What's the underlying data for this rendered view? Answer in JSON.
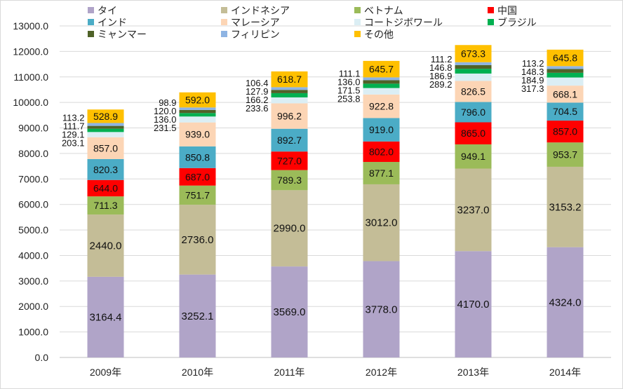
{
  "chart_data": {
    "type": "bar",
    "stacked": true,
    "categories": [
      "2009年",
      "2010年",
      "2011年",
      "2012年",
      "2013年",
      "2014年"
    ],
    "ylim": [
      0,
      13000
    ],
    "yticks": [
      "0.0",
      "1000.0",
      "2000.0",
      "3000.0",
      "4000.0",
      "5000.0",
      "6000.0",
      "7000.0",
      "8000.0",
      "9000.0",
      "10000.0",
      "11000.0",
      "12000.0",
      "13000.0"
    ],
    "grid": true,
    "legend_position": "top",
    "series": [
      {
        "name": "タイ",
        "color": "#b0a4c8",
        "values": [
          3164.4,
          3252.1,
          3569.0,
          3778.0,
          4170.0,
          4324.0
        ],
        "labels": [
          "3164.4",
          "3252.1",
          "3569.0",
          "3778.0",
          "4170.0",
          "4324.0"
        ]
      },
      {
        "name": "インドネシア",
        "color": "#c4bd97",
        "values": [
          2440.0,
          2736.0,
          2990.0,
          3012.0,
          3237.0,
          3153.2
        ],
        "labels": [
          "2440.0",
          "2736.0",
          "2990.0",
          "3012.0",
          "3237.0",
          "3153.2"
        ]
      },
      {
        "name": "ベトナム",
        "color": "#9bbb59",
        "values": [
          711.3,
          751.7,
          789.3,
          877.1,
          949.1,
          953.7
        ],
        "labels": [
          "711.3",
          "751.7",
          "789.3",
          "877.1",
          "949.1",
          "953.7"
        ]
      },
      {
        "name": "中国",
        "color": "#ff0000",
        "values": [
          644.0,
          687.0,
          727.0,
          802.0,
          865.0,
          857.0
        ],
        "labels": [
          "644.0",
          "687.0",
          "727.0",
          "802.0",
          "865.0",
          "857.0"
        ]
      },
      {
        "name": "インド",
        "color": "#4bacc6",
        "values": [
          820.3,
          850.8,
          892.7,
          919.0,
          796.0,
          704.5
        ],
        "labels": [
          "820.3",
          "850.8",
          "892.7",
          "919.0",
          "796.0",
          "704.5"
        ]
      },
      {
        "name": "マレーシア",
        "color": "#fcd5b5",
        "values": [
          857.0,
          939.0,
          996.2,
          922.8,
          826.5,
          668.1
        ],
        "labels": [
          "857.0",
          "939.0",
          "996.2",
          "922.8",
          "826.5",
          "668.1"
        ]
      },
      {
        "name": "コートジボワール",
        "color": "#dbeef4",
        "values": [
          203.1,
          231.5,
          233.6,
          253.8,
          289.2,
          317.3
        ],
        "labels": [
          "203.1",
          "231.5",
          "233.6",
          "253.8",
          "289.2",
          "317.3"
        ]
      },
      {
        "name": "ブラジル",
        "color": "#00b050",
        "values": [
          129.1,
          136.0,
          166.2,
          171.5,
          186.9,
          184.9
        ],
        "labels": [
          "129.1",
          "136.0",
          "166.2",
          "171.5",
          "186.9",
          "184.9"
        ]
      },
      {
        "name": "ミャンマー",
        "color": "#4f6228",
        "values": [
          111.7,
          120.0,
          127.9,
          136.0,
          146.8,
          148.3
        ],
        "labels": [
          "111.7",
          "120.0",
          "127.9",
          "136.0",
          "146.8",
          "148.3"
        ]
      },
      {
        "name": "フィリピン",
        "color": "#8eb4e3",
        "values": [
          113.2,
          98.9,
          106.4,
          111.1,
          111.2,
          113.2
        ],
        "labels": [
          "113.2",
          "98.9",
          "106.4",
          "111.1",
          "111.2",
          "113.2"
        ]
      },
      {
        "name": "その他",
        "color": "#ffc000",
        "values": [
          528.9,
          592.0,
          618.7,
          645.7,
          673.3,
          645.8
        ],
        "labels": [
          "528.9",
          "592.0",
          "618.7",
          "645.7",
          "673.3",
          "645.8"
        ]
      }
    ]
  }
}
